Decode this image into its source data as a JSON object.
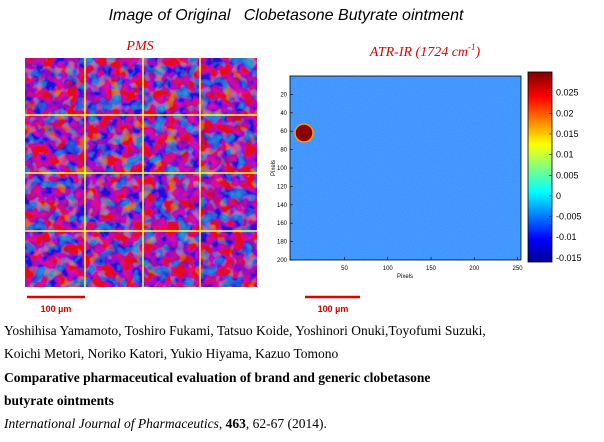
{
  "figure": {
    "title": "Image of Original   Clobetasone Butyrate ointment",
    "left_panel": {
      "label": "PMS",
      "scale_bar": "100 µm"
    },
    "right_panel": {
      "label": "ATR-IR (1724 cm",
      "label_sup": "-1",
      "label_end": ")",
      "scale_bar": "100 µm",
      "xlabel": "Pixels",
      "ylabel": "Pixels",
      "xlim": [
        -13,
        254
      ],
      "xticks": [
        50,
        100,
        150,
        200,
        250
      ],
      "ylim": [
        0,
        200
      ],
      "yticks": [
        20,
        40,
        60,
        80,
        100,
        120,
        140,
        160,
        180,
        200
      ],
      "clim": [
        -0.016,
        0.03
      ],
      "cticks": [
        0.025,
        0.02,
        0.015,
        0.01,
        0.005,
        0,
        -0.005,
        -0.01,
        -0.015
      ]
    }
  },
  "citation": {
    "authors_line1": "Yoshihisa Yamamoto, Toshiro Fukami, Tatsuo Koide, Yoshinori Onuki,Toyofumi Suzuki,",
    "authors_line2": "Koichi Metori, Noriko Katori, Yukio Hiyama, Kazuo Tomono",
    "title_line1": "Comparative pharmaceutical evaluation of brand and generic clobetasone",
    "title_line2": "butyrate ointments",
    "journal": "International Journal of Pharmaceutics",
    "sep": ", ",
    "volume": "463",
    "pages": ", 62-67 (2014)."
  }
}
